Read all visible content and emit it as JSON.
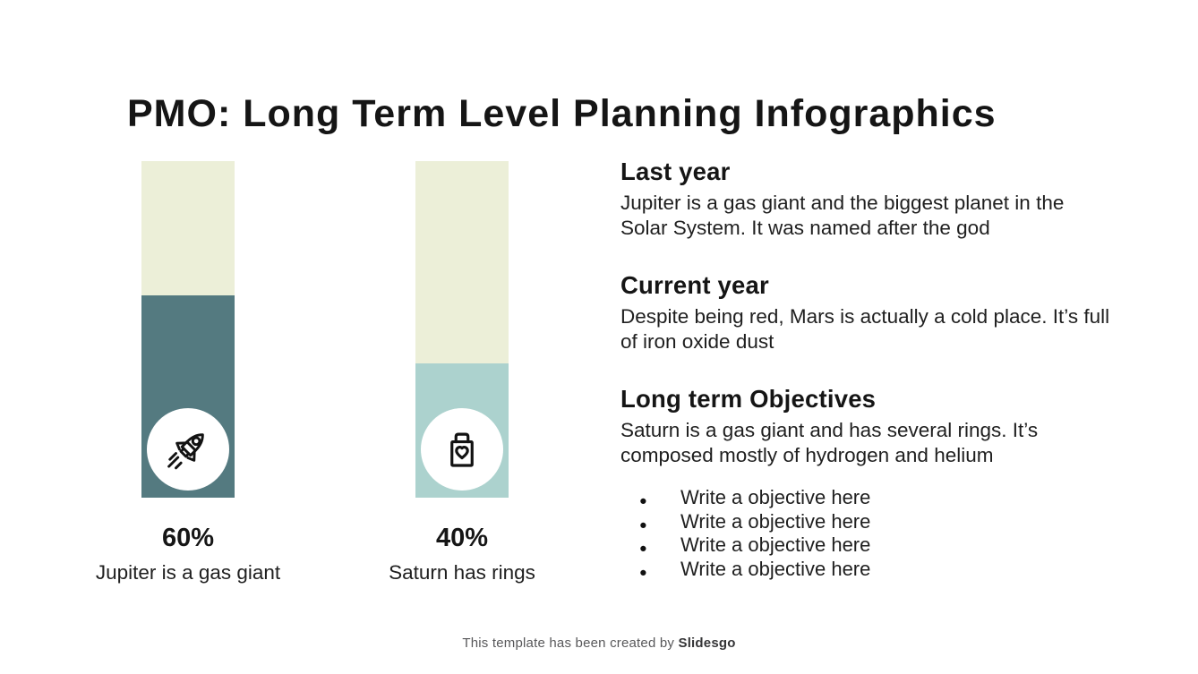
{
  "page": {
    "title": "PMO: Long Term Level Planning Infographics"
  },
  "colors": {
    "bar_track": "#ecefd8",
    "bar1_fill": "#547a80",
    "bar2_fill": "#acd2ce",
    "title_text": "#151515",
    "body_text": "#1f1f1f",
    "footer_gray": "#58585a"
  },
  "chart_data": {
    "type": "bar",
    "orientation": "vertical",
    "ylim": [
      0,
      100
    ],
    "grid": false,
    "legend": "none",
    "bars": [
      {
        "value": 60,
        "label": "60%",
        "caption": "Jupiter is a gas giant",
        "icon": "rocket-icon",
        "fill": "#547a80"
      },
      {
        "value": 40,
        "label": "40%",
        "caption": "Saturn has rings",
        "icon": "shopping-bag-heart-icon",
        "fill": "#acd2ce"
      }
    ]
  },
  "sections": [
    {
      "heading": "Last year",
      "body": "Jupiter is a gas giant and the biggest planet in the Solar System. It was named after the god"
    },
    {
      "heading": "Current year",
      "body": "Despite being red, Mars is actually a cold place. It’s full of iron oxide dust"
    },
    {
      "heading": "Long term Objectives",
      "body": "Saturn is a gas giant and has several rings. It’s composed mostly of hydrogen and helium"
    }
  ],
  "objectives": [
    "Write a objective here",
    "Write a objective here",
    "Write a objective here",
    "Write a objective here"
  ],
  "footer": {
    "text": "This template has been created by ",
    "brand": "Slidesgo"
  }
}
